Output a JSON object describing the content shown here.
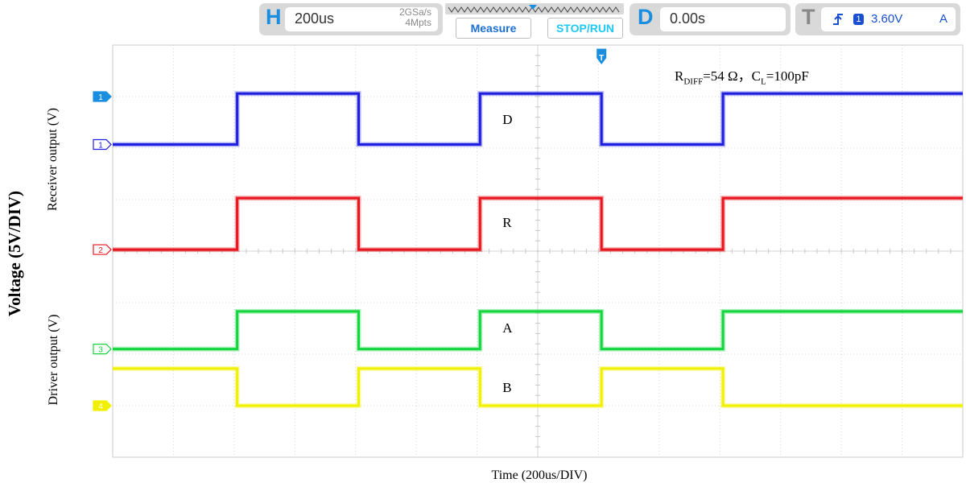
{
  "toolbar": {
    "horizontal": {
      "key": "H",
      "timebase": "200us",
      "sample_rate": "2GSa/s",
      "memory": "4Mpts"
    },
    "measure_label": "Measure",
    "stop_run_label": "STOP/RUN",
    "delay": {
      "key": "D",
      "value": "0.00s"
    },
    "trigger": {
      "key": "T",
      "channel": "1",
      "level": "3.60V",
      "mode": "A"
    },
    "trigger_marker": "T"
  },
  "annotation": {
    "prefix": "R",
    "sub1": "DIFF",
    "mid": "=54 Ω，C",
    "sub2": "L",
    "suffix": "=100pF"
  },
  "wave_labels": {
    "D": "D",
    "R": "R",
    "A": "A",
    "B": "B"
  },
  "axis": {
    "y_main": "Voltage (5V/DIV)",
    "y_receiver": "Receiver output (V)",
    "y_driver": "Driver output (V)",
    "x": "Time (200us/DIV)"
  },
  "chart_data": {
    "type": "line",
    "title": "",
    "xlabel": "Time (200us/DIV)",
    "ylabel": "Voltage (5V/DIV)",
    "x_divisions": 14,
    "y_divisions": 8,
    "grid": true,
    "x_units": "div",
    "y_units": "div",
    "xlim": [
      0,
      14
    ],
    "ylim": [
      0,
      8
    ],
    "series": [
      {
        "name": "D",
        "channel": "1",
        "color": "#1f1fe0",
        "points": [
          [
            0,
            6.07
          ],
          [
            2.05,
            6.07
          ],
          [
            2.05,
            7.06
          ],
          [
            4.05,
            7.06
          ],
          [
            4.05,
            6.07
          ],
          [
            6.05,
            6.07
          ],
          [
            6.05,
            7.06
          ],
          [
            8.05,
            7.06
          ],
          [
            8.05,
            6.07
          ],
          [
            10.05,
            6.07
          ],
          [
            10.05,
            7.06
          ],
          [
            14,
            7.06
          ]
        ]
      },
      {
        "name": "R",
        "channel": "2",
        "color": "#e8161e",
        "points": [
          [
            0,
            4.03
          ],
          [
            2.05,
            4.03
          ],
          [
            2.05,
            5.03
          ],
          [
            4.05,
            5.03
          ],
          [
            4.05,
            4.03
          ],
          [
            6.05,
            4.03
          ],
          [
            6.05,
            5.03
          ],
          [
            8.05,
            5.03
          ],
          [
            8.05,
            4.03
          ],
          [
            10.05,
            4.03
          ],
          [
            10.05,
            5.03
          ],
          [
            14,
            5.03
          ]
        ]
      },
      {
        "name": "A",
        "channel": "3",
        "color": "#15d63f",
        "points": [
          [
            0,
            2.1
          ],
          [
            2.05,
            2.1
          ],
          [
            2.05,
            2.83
          ],
          [
            4.05,
            2.83
          ],
          [
            4.05,
            2.1
          ],
          [
            6.05,
            2.1
          ],
          [
            6.05,
            2.83
          ],
          [
            8.05,
            2.83
          ],
          [
            8.05,
            2.1
          ],
          [
            10.05,
            2.1
          ],
          [
            10.05,
            2.83
          ],
          [
            14,
            2.83
          ]
        ]
      },
      {
        "name": "B",
        "channel": "4",
        "color": "#f0f000",
        "points": [
          [
            0,
            1.72
          ],
          [
            2.05,
            1.72
          ],
          [
            2.05,
            1.0
          ],
          [
            4.05,
            1.0
          ],
          [
            4.05,
            1.72
          ],
          [
            6.05,
            1.72
          ],
          [
            6.05,
            1.0
          ],
          [
            8.05,
            1.0
          ],
          [
            8.05,
            1.72
          ],
          [
            10.05,
            1.72
          ],
          [
            10.05,
            1.0
          ],
          [
            14,
            1.0
          ]
        ]
      }
    ],
    "channel_markers": [
      {
        "label": "1",
        "level": 6.07,
        "color": "#1f1fe0",
        "style": "outline"
      },
      {
        "label": "1",
        "level": 7.0,
        "color": "#1a8fe0",
        "style": "filled"
      },
      {
        "label": "2",
        "level": 4.03,
        "color": "#e8161e",
        "style": "outline"
      },
      {
        "label": "3",
        "level": 2.1,
        "color": "#15d63f",
        "style": "outline"
      },
      {
        "label": "4",
        "level": 1.0,
        "color": "#f0f000",
        "style": "filled"
      }
    ],
    "trigger_time_div": 8.05,
    "wave_label_positions": [
      {
        "key": "D",
        "x": 6.5,
        "level": 6.55
      },
      {
        "key": "R",
        "x": 6.5,
        "level": 4.55
      },
      {
        "key": "A",
        "x": 6.5,
        "level": 2.5
      },
      {
        "key": "B",
        "x": 6.5,
        "level": 1.35
      }
    ]
  },
  "colors": {
    "accent_blue": "#1a8fe0",
    "toolbar_gray": "#d9d9d9",
    "stop_run": "#1ec8f0",
    "grid": "#d4d4d4"
  }
}
